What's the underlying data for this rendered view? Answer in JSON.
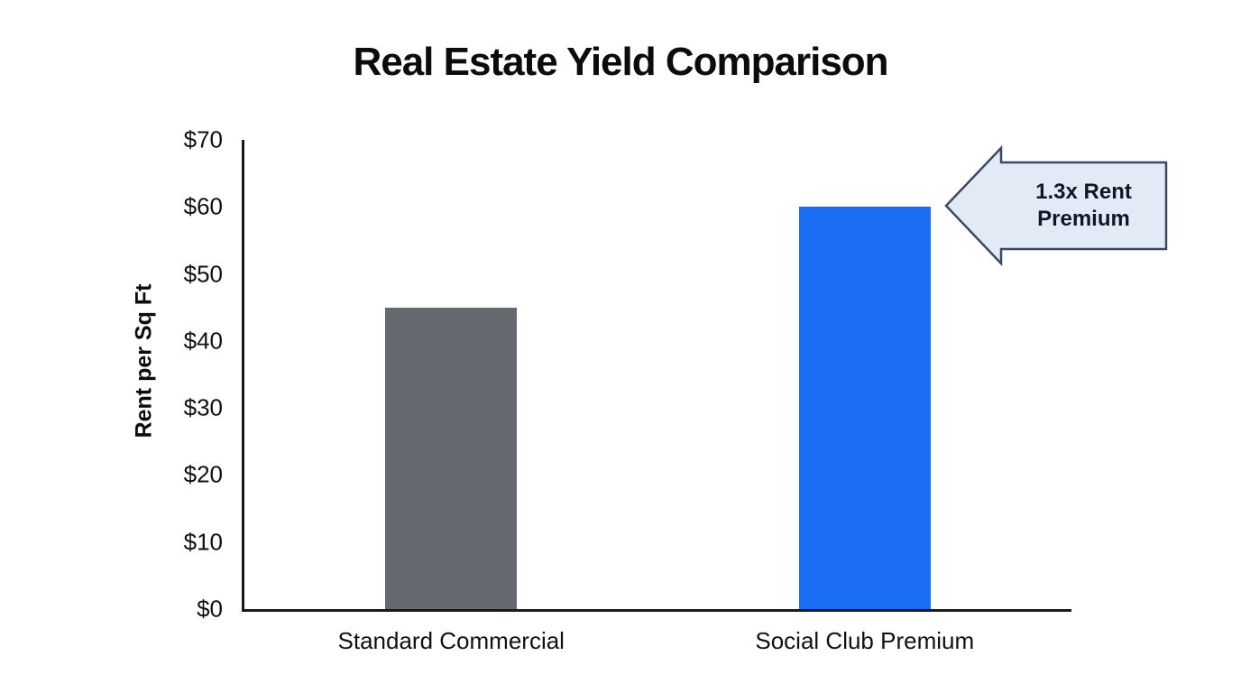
{
  "chart_data": {
    "type": "bar",
    "title": "Real Estate Yield Comparison",
    "xlabel": "",
    "ylabel": "Rent per Sq Ft",
    "categories": [
      "Standard Commercial",
      "Social Club Premium"
    ],
    "values": [
      45,
      60
    ],
    "ylim": [
      0,
      70
    ],
    "yticks": [
      0,
      10,
      20,
      30,
      40,
      50,
      60,
      70
    ],
    "ytick_labels": [
      "$0",
      "$10",
      "$20",
      "$30",
      "$40",
      "$50",
      "$60",
      "$70"
    ],
    "bar_colors": [
      "#64696f",
      "#1b6ef3"
    ],
    "grid": false,
    "legend": "none",
    "annotation": {
      "text": "1.3x Rent Premium",
      "target_category": "Social Club Premium",
      "target_value": 60,
      "shape": "left-arrow",
      "fill": "#e2eaf6",
      "border": "#3b4a63"
    }
  },
  "annotation": {
    "line1": "1.3x Rent",
    "line2": "Premium"
  }
}
